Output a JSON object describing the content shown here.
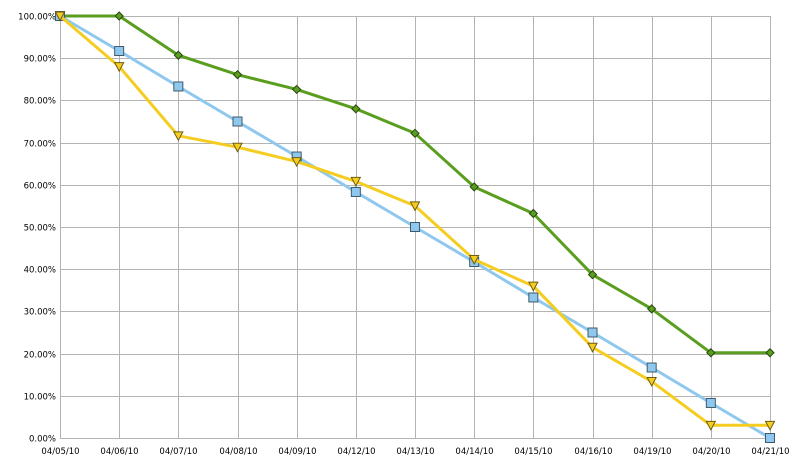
{
  "chart_data": {
    "type": "line",
    "title": "",
    "xlabel": "",
    "ylabel": "",
    "ylim": [
      0,
      100
    ],
    "yticks": [
      "0.00%",
      "10.00%",
      "20.00%",
      "30.00%",
      "40.00%",
      "50.00%",
      "60.00%",
      "70.00%",
      "80.00%",
      "90.00%",
      "100.00%"
    ],
    "ytick_values": [
      0,
      10,
      20,
      30,
      40,
      50,
      60,
      70,
      80,
      90,
      100
    ],
    "categories": [
      "04/05/10",
      "04/06/10",
      "04/07/10",
      "04/08/10",
      "04/09/10",
      "04/12/10",
      "04/13/10",
      "04/14/10",
      "04/15/10",
      "04/16/10",
      "04/19/10",
      "04/20/10",
      "04/21/10"
    ],
    "grid": true,
    "legend": "none",
    "series": [
      {
        "color": "#5a9e1f",
        "marker": "diamond",
        "values": [
          100,
          100,
          90.7,
          86.1,
          82.6,
          78.0,
          72.2,
          59.5,
          53.2,
          38.7,
          30.6,
          20.2,
          20.2
        ]
      },
      {
        "color": "#8fc8ee",
        "marker": "square",
        "values": [
          100,
          91.7,
          83.3,
          75.0,
          66.7,
          58.3,
          50.0,
          41.7,
          33.3,
          25.0,
          16.7,
          8.3,
          0.0
        ]
      },
      {
        "color": "#f5cd20",
        "marker": "triangle-down",
        "values": [
          100,
          88.0,
          71.6,
          68.9,
          65.5,
          60.8,
          55.0,
          42.3,
          36.0,
          21.5,
          13.4,
          3.0,
          3.0
        ]
      }
    ]
  }
}
